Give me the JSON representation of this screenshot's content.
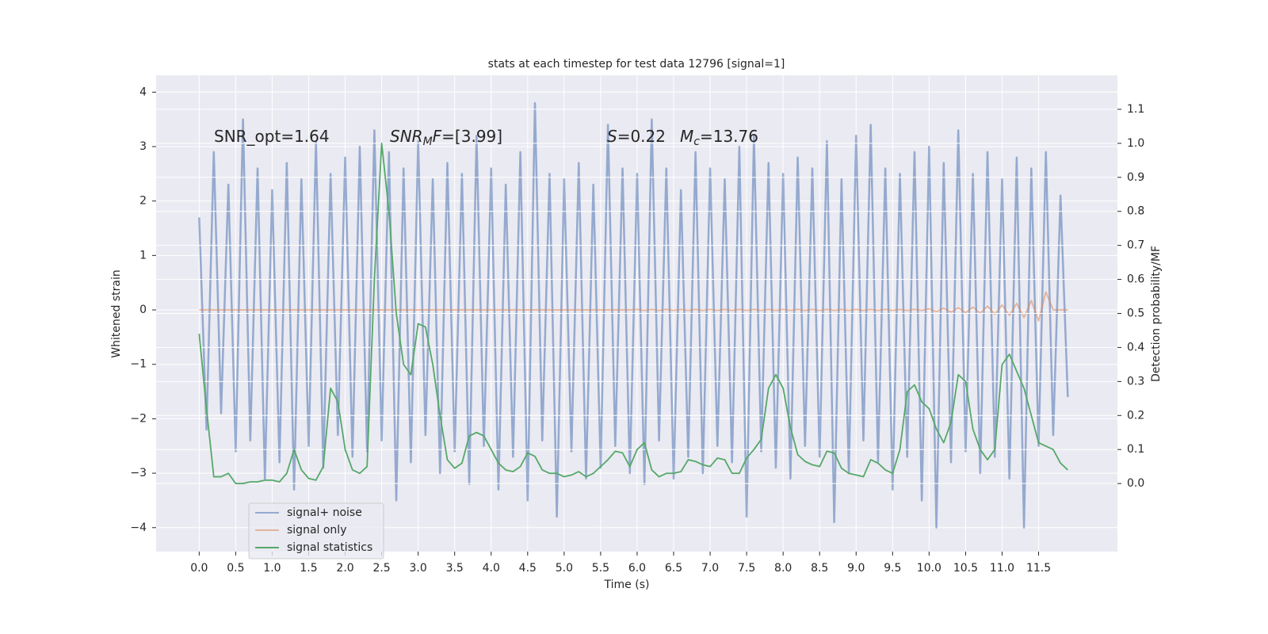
{
  "chart_data": {
    "type": "line",
    "title": "stats at each timestep for test data 12796 [signal=1]",
    "x_label": "Time (s)",
    "y_label": "Whitened strain",
    "y2_label": "Detection probability/MF",
    "annotations": [
      [
        {
          "text": "SNR_opt=1.64"
        }
      ],
      [
        {
          "text": "SNR",
          "italic": true
        },
        {
          "text": "M",
          "italic": true,
          "sub": true
        },
        {
          "text": "F",
          "italic": true
        },
        {
          "text": "=[3.99]"
        }
      ],
      [
        {
          "text": "S",
          "italic": true
        },
        {
          "text": "=0.22"
        }
      ],
      [
        {
          "text": "M",
          "italic": true
        },
        {
          "text": "c",
          "italic": true,
          "sub": true
        },
        {
          "text": "=13.76"
        }
      ]
    ],
    "grid": true,
    "legend": "lower left",
    "background": "#eaeaf2",
    "xlim": [
      -0.59,
      12.58
    ],
    "ylim": [
      -4.44,
      4.31
    ],
    "y2lim": [
      -0.2,
      1.2
    ],
    "xticks": [
      {
        "value": 0,
        "label": "0.0"
      },
      {
        "value": 0.5,
        "label": "0.5"
      },
      {
        "value": 1,
        "label": "1.0"
      },
      {
        "value": 1.5,
        "label": "1.5"
      },
      {
        "value": 2,
        "label": "2.0"
      },
      {
        "value": 2.5,
        "label": "2.5"
      },
      {
        "value": 3,
        "label": "3.0"
      },
      {
        "value": 3.5,
        "label": "3.5"
      },
      {
        "value": 4,
        "label": "4.0"
      },
      {
        "value": 4.5,
        "label": "4.5"
      },
      {
        "value": 5,
        "label": "5.0"
      },
      {
        "value": 5.5,
        "label": "5.5"
      },
      {
        "value": 6,
        "label": "6.0"
      },
      {
        "value": 6.5,
        "label": "6.5"
      },
      {
        "value": 7,
        "label": "7.0"
      },
      {
        "value": 7.5,
        "label": "7.5"
      },
      {
        "value": 8,
        "label": "8.0"
      },
      {
        "value": 8.5,
        "label": "8.5"
      },
      {
        "value": 9,
        "label": "9.0"
      },
      {
        "value": 9.5,
        "label": "9.5"
      },
      {
        "value": 10,
        "label": "10.0"
      },
      {
        "value": 10.5,
        "label": "10.5"
      },
      {
        "value": 11,
        "label": "11.0"
      },
      {
        "value": 11.5,
        "label": "11.5"
      }
    ],
    "yticks": [
      {
        "value": -4,
        "label": "−4"
      },
      {
        "value": -3,
        "label": "−3"
      },
      {
        "value": -2,
        "label": "−2"
      },
      {
        "value": -1,
        "label": "−1"
      },
      0,
      1,
      2,
      3,
      4
    ],
    "y2ticks": [
      {
        "value": 0,
        "label": "0.0"
      },
      {
        "value": 0.1,
        "label": "0.1"
      },
      {
        "value": 0.2,
        "label": "0.2"
      },
      {
        "value": 0.3,
        "label": "0.3"
      },
      {
        "value": 0.4,
        "label": "0.4"
      },
      {
        "value": 0.5,
        "label": "0.5"
      },
      {
        "value": 0.6,
        "label": "0.6"
      },
      {
        "value": 0.7,
        "label": "0.7"
      },
      {
        "value": 0.8,
        "label": "0.8"
      },
      {
        "value": 0.9,
        "label": "0.9"
      },
      {
        "value": 1,
        "label": "1.0"
      },
      {
        "value": 1.1,
        "label": "1.1"
      }
    ],
    "x": [
      0,
      0.1,
      0.2,
      0.3,
      0.4,
      0.5,
      0.6,
      0.7,
      0.8,
      0.9,
      1,
      1.1,
      1.2,
      1.3,
      1.4,
      1.5,
      1.6,
      1.7,
      1.8,
      1.9,
      2,
      2.1,
      2.2,
      2.3,
      2.4,
      2.5,
      2.6,
      2.7,
      2.8,
      2.9,
      3,
      3.1,
      3.2,
      3.3,
      3.4,
      3.5,
      3.6,
      3.7,
      3.8,
      3.9,
      4,
      4.1,
      4.2,
      4.3,
      4.4,
      4.5,
      4.6,
      4.7,
      4.8,
      4.9,
      5,
      5.1,
      5.2,
      5.3,
      5.4,
      5.5,
      5.6,
      5.7,
      5.8,
      5.9,
      6,
      6.1,
      6.2,
      6.3,
      6.4,
      6.5,
      6.6,
      6.7,
      6.8,
      6.9,
      7,
      7.1,
      7.2,
      7.3,
      7.4,
      7.5,
      7.6,
      7.7,
      7.8,
      7.9,
      8,
      8.1,
      8.2,
      8.3,
      8.4,
      8.5,
      8.6,
      8.7,
      8.8,
      8.9,
      9,
      9.1,
      9.2,
      9.3,
      9.4,
      9.5,
      9.6,
      9.7,
      9.8,
      9.9,
      10,
      10.1,
      10.2,
      10.3,
      10.4,
      10.5,
      10.6,
      10.7,
      10.8,
      10.9,
      11,
      11.1,
      11.2,
      11.3,
      11.4,
      11.5,
      11.6,
      11.7,
      11.8,
      11.9
    ],
    "series": [
      {
        "name": "signal+ noise",
        "color": "#4c72b0",
        "values": [
          1.7,
          -2.2,
          2.9,
          -1.9,
          2.3,
          -2.6,
          3.5,
          -2.4,
          2.6,
          -3.1,
          2.2,
          -2.8,
          2.7,
          -3.3,
          2.4,
          -2.5,
          3.1,
          -2.9,
          2.5,
          -2.3,
          2.8,
          -2.7,
          3.0,
          -2.6,
          3.3,
          -2.4,
          2.9,
          -3.5,
          2.6,
          -2.8,
          3.1,
          -2.3,
          2.4,
          -3.0,
          2.7,
          -2.6,
          2.5,
          -3.2,
          3.2,
          -2.5,
          2.6,
          -3.3,
          2.3,
          -2.7,
          2.9,
          -3.5,
          3.8,
          -2.4,
          2.5,
          -3.8,
          2.4,
          -2.6,
          2.7,
          -3.1,
          2.3,
          -2.9,
          3.4,
          -2.5,
          2.6,
          -3.0,
          2.5,
          -3.2,
          3.5,
          -2.4,
          2.6,
          -3.1,
          2.2,
          -2.7,
          2.9,
          -3.0,
          2.6,
          -2.5,
          2.4,
          -2.8,
          3.0,
          -3.8,
          3.2,
          -2.6,
          2.7,
          -2.9,
          2.5,
          -3.1,
          2.8,
          -2.5,
          2.6,
          -2.7,
          3.1,
          -3.9,
          2.4,
          -3.0,
          3.2,
          -2.4,
          3.4,
          -2.8,
          2.6,
          -3.3,
          2.5,
          -2.7,
          2.9,
          -3.5,
          3.0,
          -4.0,
          2.7,
          -2.8,
          3.3,
          -2.6,
          2.5,
          -3.0,
          2.9,
          -2.7,
          2.4,
          -3.1,
          2.8,
          -4.0,
          2.6,
          -2.5,
          2.9,
          -2.3,
          2.1,
          -1.6
        ]
      },
      {
        "name": "signal only",
        "color": "#dd8452",
        "values": [
          0,
          0,
          0,
          0,
          0,
          0,
          0,
          0,
          0,
          0,
          0,
          0,
          0,
          0,
          0,
          0,
          0,
          0,
          0,
          0,
          0,
          0,
          0,
          0,
          0,
          0,
          0,
          0,
          0,
          0,
          0,
          0,
          0,
          0,
          0,
          0,
          0,
          0,
          0,
          0,
          0,
          0,
          0,
          0,
          0,
          0,
          0,
          0,
          0,
          0,
          0,
          0,
          0,
          0,
          0,
          0,
          0,
          0,
          0,
          0,
          0.01,
          -0.01,
          0.01,
          -0.01,
          0.01,
          -0.01,
          0.01,
          -0.01,
          0.01,
          -0.01,
          0.01,
          -0.01,
          0.01,
          -0.01,
          0.01,
          -0.01,
          0.01,
          -0.01,
          0.01,
          -0.01,
          0.01,
          -0.01,
          0.01,
          -0.01,
          0.01,
          -0.01,
          0.01,
          -0.01,
          0.01,
          -0.01,
          0.01,
          -0.01,
          0.01,
          -0.01,
          0.01,
          -0.01,
          0.01,
          -0.01,
          0.01,
          -0.01,
          0.02,
          -0.03,
          0.03,
          -0.04,
          0.04,
          -0.05,
          0.05,
          -0.06,
          0.07,
          -0.08,
          0.09,
          -0.1,
          0.12,
          -0.14,
          0.17,
          -0.2,
          0.33,
          0,
          0,
          0
        ]
      },
      {
        "name": "signal statistics",
        "color": "#55a868",
        "axis": "y2",
        "values": [
          0.44,
          0.22,
          0.02,
          0.02,
          0.03,
          0,
          0,
          0.005,
          0.005,
          0.01,
          0.01,
          0.005,
          0.03,
          0.1,
          0.04,
          0.015,
          0.01,
          0.05,
          0.28,
          0.24,
          0.1,
          0.04,
          0.03,
          0.05,
          0.6,
          1.0,
          0.8,
          0.5,
          0.35,
          0.32,
          0.47,
          0.46,
          0.35,
          0.2,
          0.07,
          0.045,
          0.06,
          0.14,
          0.15,
          0.14,
          0.1,
          0.06,
          0.04,
          0.035,
          0.05,
          0.09,
          0.08,
          0.04,
          0.03,
          0.03,
          0.02,
          0.025,
          0.035,
          0.02,
          0.03,
          0.05,
          0.07,
          0.095,
          0.09,
          0.05,
          0.1,
          0.12,
          0.04,
          0.02,
          0.03,
          0.03,
          0.035,
          0.07,
          0.065,
          0.055,
          0.05,
          0.075,
          0.07,
          0.03,
          0.03,
          0.075,
          0.1,
          0.13,
          0.28,
          0.32,
          0.28,
          0.165,
          0.085,
          0.065,
          0.055,
          0.05,
          0.095,
          0.09,
          0.045,
          0.03,
          0.025,
          0.02,
          0.07,
          0.06,
          0.04,
          0.03,
          0.1,
          0.27,
          0.29,
          0.24,
          0.22,
          0.16,
          0.12,
          0.18,
          0.32,
          0.3,
          0.16,
          0.1,
          0.07,
          0.1,
          0.35,
          0.38,
          0.33,
          0.28,
          0.2,
          0.12,
          0.11,
          0.1,
          0.06,
          0.04
        ]
      }
    ]
  }
}
